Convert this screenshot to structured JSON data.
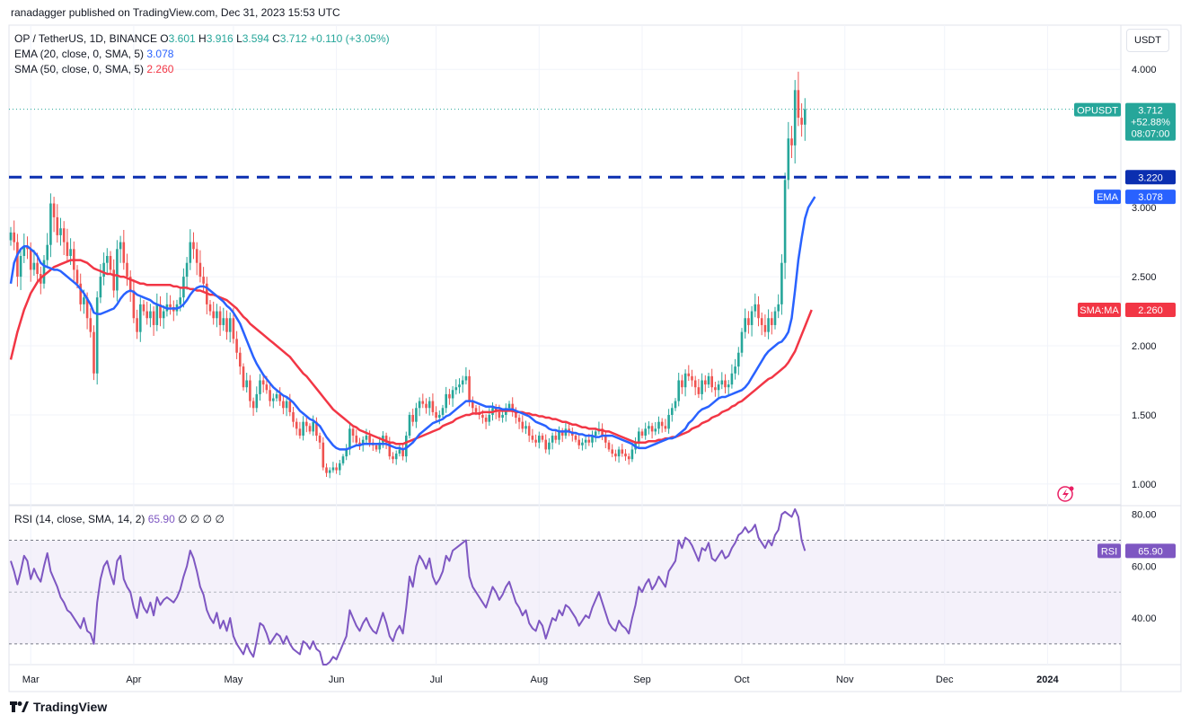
{
  "publisher": "ranadagger published on TradingView.com, Dec 31, 2023 15:53 UTC",
  "brand": "TradingView",
  "currency_button": "USDT",
  "legend": {
    "symbol": "OP / TetherUS, 1D, BINANCE",
    "o_label": "O",
    "o": "3.601",
    "h_label": "H",
    "h": "3.916",
    "l_label": "L",
    "l": "3.594",
    "c_label": "C",
    "c": "3.712",
    "change": "+0.110 (+3.05%)",
    "ema_label": "EMA (20, close, 0, SMA, 5)",
    "ema_value": "3.078",
    "sma_label": "SMA (50, close, 0, SMA, 5)",
    "sma_value": "2.260"
  },
  "rsi_legend": {
    "label": "RSI (14, close, SMA, 14, 2)",
    "value": "65.90",
    "extras": "∅ ∅ ∅ ∅"
  },
  "colors": {
    "up": "#26a69a",
    "down": "#ef5350",
    "ema": "#2962ff",
    "sma": "#f23645",
    "rsi": "#7e57c2",
    "level": "#0b2fb0",
    "band": "#ede7f6"
  },
  "chart_data": {
    "type": "candlestick",
    "title": "OP / TetherUS, 1D, BINANCE",
    "ylim": [
      0.85,
      4.32
    ],
    "price_ticks": [
      "4.000",
      "3.000",
      "2.500",
      "2.000",
      "1.500",
      "1.000"
    ],
    "price_tick_values": [
      4.0,
      3.0,
      2.5,
      2.0,
      1.5,
      1.0
    ],
    "x_labels": [
      "Mar",
      "Apr",
      "May",
      "Jun",
      "Jul",
      "Aug",
      "Sep",
      "Oct",
      "Nov",
      "Dec",
      "2024"
    ],
    "x_label_days": [
      6,
      37,
      67,
      98,
      128,
      159,
      190,
      220,
      251,
      281,
      312
    ],
    "horizontal_level": {
      "value": 3.22,
      "label": "3.220"
    },
    "last_price_label": {
      "symbol": "OPUSDT",
      "price": "3.712",
      "change": "+52.88%",
      "countdown": "08:07:00",
      "value": 3.712
    },
    "ema_label": {
      "name": "EMA",
      "value": "3.078",
      "num": 3.078
    },
    "sma_label": {
      "name": "SMA:MA",
      "value": "2.260",
      "num": 2.26
    },
    "closes": [
      2.82,
      2.75,
      2.5,
      2.65,
      2.72,
      2.7,
      2.55,
      2.6,
      2.52,
      2.45,
      2.62,
      2.73,
      3.03,
      2.93,
      2.8,
      2.85,
      2.75,
      2.65,
      2.7,
      2.55,
      2.45,
      2.3,
      2.35,
      2.2,
      2.1,
      1.8,
      2.35,
      2.5,
      2.6,
      2.65,
      2.55,
      2.4,
      2.7,
      2.75,
      2.6,
      2.5,
      2.4,
      2.2,
      2.1,
      2.3,
      2.25,
      2.2,
      2.25,
      2.15,
      2.3,
      2.2,
      2.25,
      2.3,
      2.28,
      2.25,
      2.3,
      2.35,
      2.5,
      2.6,
      2.75,
      2.7,
      2.6,
      2.5,
      2.45,
      2.3,
      2.25,
      2.2,
      2.25,
      2.15,
      2.2,
      2.1,
      2.2,
      2.05,
      1.95,
      1.85,
      1.7,
      1.75,
      1.6,
      1.55,
      1.65,
      1.75,
      1.72,
      1.68,
      1.6,
      1.62,
      1.65,
      1.6,
      1.55,
      1.6,
      1.52,
      1.45,
      1.4,
      1.35,
      1.45,
      1.42,
      1.38,
      1.45,
      1.35,
      1.3,
      1.12,
      1.08,
      1.1,
      1.12,
      1.1,
      1.15,
      1.2,
      1.25,
      1.4,
      1.35,
      1.3,
      1.28,
      1.32,
      1.35,
      1.3,
      1.28,
      1.25,
      1.3,
      1.35,
      1.3,
      1.2,
      1.18,
      1.22,
      1.25,
      1.2,
      1.35,
      1.5,
      1.45,
      1.55,
      1.6,
      1.58,
      1.55,
      1.6,
      1.52,
      1.48,
      1.5,
      1.55,
      1.65,
      1.62,
      1.68,
      1.7,
      1.72,
      1.75,
      1.78,
      1.6,
      1.55,
      1.52,
      1.5,
      1.48,
      1.45,
      1.5,
      1.55,
      1.52,
      1.48,
      1.5,
      1.55,
      1.58,
      1.52,
      1.48,
      1.45,
      1.4,
      1.42,
      1.35,
      1.32,
      1.3,
      1.35,
      1.32,
      1.25,
      1.3,
      1.35,
      1.32,
      1.38,
      1.35,
      1.4,
      1.38,
      1.35,
      1.32,
      1.28,
      1.3,
      1.32,
      1.3,
      1.35,
      1.38,
      1.4,
      1.35,
      1.3,
      1.25,
      1.22,
      1.2,
      1.25,
      1.22,
      1.2,
      1.18,
      1.25,
      1.3,
      1.38,
      1.35,
      1.4,
      1.42,
      1.38,
      1.4,
      1.45,
      1.42,
      1.4,
      1.5,
      1.55,
      1.6,
      1.75,
      1.7,
      1.8,
      1.78,
      1.75,
      1.7,
      1.65,
      1.75,
      1.72,
      1.78,
      1.7,
      1.68,
      1.72,
      1.75,
      1.7,
      1.72,
      1.8,
      1.85,
      1.95,
      2.1,
      2.2,
      2.15,
      2.25,
      2.3,
      2.2,
      2.15,
      2.1,
      2.2,
      2.15,
      2.25,
      2.3,
      2.6,
      3.2,
      3.5,
      3.45,
      3.85,
      3.65,
      3.6,
      3.712
    ],
    "ema20": [
      2.45,
      2.6,
      2.66,
      2.7,
      2.72,
      2.72,
      2.7,
      2.68,
      2.65,
      2.6,
      2.58,
      2.57,
      2.56,
      2.55,
      2.55,
      2.54,
      2.52,
      2.5,
      2.48,
      2.46,
      2.44,
      2.41,
      2.38,
      2.34,
      2.3,
      2.24,
      2.23,
      2.23,
      2.24,
      2.25,
      2.26,
      2.27,
      2.3,
      2.34,
      2.37,
      2.39,
      2.4,
      2.39,
      2.37,
      2.36,
      2.35,
      2.34,
      2.33,
      2.31,
      2.3,
      2.29,
      2.28,
      2.27,
      2.27,
      2.27,
      2.27,
      2.28,
      2.3,
      2.33,
      2.37,
      2.4,
      2.42,
      2.43,
      2.43,
      2.42,
      2.4,
      2.38,
      2.36,
      2.34,
      2.32,
      2.29,
      2.27,
      2.24,
      2.2,
      2.16,
      2.1,
      2.04,
      1.98,
      1.92,
      1.87,
      1.83,
      1.79,
      1.76,
      1.73,
      1.7,
      1.68,
      1.66,
      1.64,
      1.63,
      1.61,
      1.59,
      1.56,
      1.53,
      1.51,
      1.49,
      1.47,
      1.46,
      1.44,
      1.42,
      1.38,
      1.34,
      1.31,
      1.28,
      1.26,
      1.25,
      1.25,
      1.25,
      1.26,
      1.27,
      1.28,
      1.28,
      1.29,
      1.29,
      1.29,
      1.29,
      1.29,
      1.29,
      1.29,
      1.29,
      1.28,
      1.27,
      1.26,
      1.26,
      1.25,
      1.26,
      1.28,
      1.3,
      1.33,
      1.36,
      1.38,
      1.4,
      1.42,
      1.44,
      1.45,
      1.46,
      1.47,
      1.49,
      1.5,
      1.52,
      1.54,
      1.56,
      1.58,
      1.6,
      1.6,
      1.6,
      1.59,
      1.58,
      1.57,
      1.56,
      1.56,
      1.56,
      1.55,
      1.55,
      1.54,
      1.54,
      1.54,
      1.54,
      1.53,
      1.52,
      1.51,
      1.5,
      1.49,
      1.47,
      1.45,
      1.44,
      1.43,
      1.42,
      1.4,
      1.39,
      1.39,
      1.38,
      1.38,
      1.38,
      1.38,
      1.37,
      1.37,
      1.36,
      1.36,
      1.35,
      1.35,
      1.35,
      1.34,
      1.34,
      1.35,
      1.35,
      1.35,
      1.35,
      1.34,
      1.33,
      1.32,
      1.31,
      1.3,
      1.29,
      1.27,
      1.26,
      1.26,
      1.26,
      1.27,
      1.28,
      1.29,
      1.3,
      1.31,
      1.32,
      1.33,
      1.33,
      1.34,
      1.36,
      1.38,
      1.4,
      1.44,
      1.46,
      1.49,
      1.52,
      1.54,
      1.55,
      1.56,
      1.58,
      1.6,
      1.62,
      1.63,
      1.63,
      1.64,
      1.65,
      1.66,
      1.67,
      1.68,
      1.7,
      1.73,
      1.77,
      1.81,
      1.85,
      1.89,
      1.93,
      1.96,
      1.98,
      2.0,
      2.02,
      2.03,
      2.06,
      2.1,
      2.2,
      2.4,
      2.62,
      2.78,
      2.92,
      3.0,
      3.04,
      3.078
    ],
    "sma50": [
      1.9,
      2.0,
      2.1,
      2.18,
      2.26,
      2.32,
      2.38,
      2.42,
      2.46,
      2.49,
      2.51,
      2.53,
      2.55,
      2.57,
      2.58,
      2.59,
      2.6,
      2.61,
      2.62,
      2.62,
      2.62,
      2.62,
      2.61,
      2.6,
      2.58,
      2.56,
      2.55,
      2.54,
      2.53,
      2.52,
      2.52,
      2.51,
      2.51,
      2.5,
      2.5,
      2.49,
      2.48,
      2.47,
      2.46,
      2.45,
      2.45,
      2.44,
      2.44,
      2.44,
      2.44,
      2.44,
      2.44,
      2.44,
      2.44,
      2.43,
      2.43,
      2.42,
      2.42,
      2.42,
      2.41,
      2.41,
      2.4,
      2.4,
      2.39,
      2.38,
      2.37,
      2.37,
      2.36,
      2.35,
      2.34,
      2.33,
      2.31,
      2.29,
      2.27,
      2.24,
      2.21,
      2.19,
      2.16,
      2.14,
      2.12,
      2.1,
      2.08,
      2.06,
      2.04,
      2.02,
      2.0,
      1.98,
      1.96,
      1.94,
      1.92,
      1.89,
      1.86,
      1.83,
      1.8,
      1.78,
      1.75,
      1.72,
      1.69,
      1.66,
      1.63,
      1.6,
      1.57,
      1.54,
      1.52,
      1.5,
      1.48,
      1.46,
      1.44,
      1.42,
      1.41,
      1.39,
      1.38,
      1.37,
      1.36,
      1.35,
      1.34,
      1.33,
      1.32,
      1.31,
      1.3,
      1.3,
      1.29,
      1.29,
      1.29,
      1.3,
      1.31,
      1.32,
      1.33,
      1.34,
      1.35,
      1.36,
      1.37,
      1.38,
      1.39,
      1.4,
      1.42,
      1.43,
      1.44,
      1.45,
      1.47,
      1.48,
      1.49,
      1.5,
      1.5,
      1.51,
      1.51,
      1.51,
      1.52,
      1.52,
      1.52,
      1.52,
      1.53,
      1.53,
      1.53,
      1.53,
      1.53,
      1.53,
      1.52,
      1.52,
      1.52,
      1.51,
      1.51,
      1.5,
      1.5,
      1.49,
      1.49,
      1.48,
      1.48,
      1.47,
      1.47,
      1.46,
      1.45,
      1.45,
      1.44,
      1.43,
      1.43,
      1.42,
      1.41,
      1.41,
      1.4,
      1.4,
      1.4,
      1.39,
      1.39,
      1.38,
      1.38,
      1.37,
      1.36,
      1.35,
      1.34,
      1.33,
      1.32,
      1.31,
      1.3,
      1.3,
      1.3,
      1.3,
      1.31,
      1.31,
      1.31,
      1.32,
      1.32,
      1.33,
      1.33,
      1.34,
      1.34,
      1.35,
      1.36,
      1.37,
      1.38,
      1.4,
      1.41,
      1.42,
      1.44,
      1.45,
      1.46,
      1.48,
      1.49,
      1.5,
      1.52,
      1.53,
      1.54,
      1.56,
      1.57,
      1.59,
      1.6,
      1.62,
      1.64,
      1.66,
      1.68,
      1.7,
      1.72,
      1.74,
      1.76,
      1.77,
      1.79,
      1.81,
      1.83,
      1.85,
      1.88,
      1.92,
      1.96,
      2.02,
      2.08,
      2.14,
      2.2,
      2.26
    ],
    "rsi": [
      62,
      58,
      53,
      58,
      64,
      62,
      55,
      59,
      56,
      54,
      60,
      65,
      58,
      55,
      52,
      48,
      46,
      43,
      42,
      40,
      38,
      36,
      40,
      35,
      34,
      30,
      46,
      55,
      60,
      62,
      57,
      53,
      62,
      64,
      55,
      52,
      50,
      44,
      40,
      48,
      44,
      42,
      46,
      41,
      48,
      45,
      47,
      48,
      47,
      46,
      48,
      51,
      56,
      60,
      66,
      63,
      58,
      52,
      49,
      43,
      40,
      38,
      42,
      36,
      39,
      35,
      40,
      33,
      30,
      28,
      26,
      30,
      27,
      25,
      31,
      38,
      37,
      34,
      30,
      32,
      34,
      33,
      30,
      33,
      30,
      28,
      27,
      26,
      31,
      30,
      28,
      31,
      28,
      27,
      22,
      22,
      23,
      25,
      24,
      27,
      30,
      33,
      43,
      40,
      37,
      35,
      38,
      40,
      37,
      35,
      34,
      38,
      42,
      38,
      33,
      31,
      35,
      37,
      34,
      44,
      56,
      52,
      60,
      64,
      62,
      59,
      63,
      56,
      53,
      55,
      58,
      64,
      62,
      66,
      67,
      68,
      69,
      70,
      56,
      52,
      50,
      48,
      46,
      44,
      48,
      52,
      50,
      47,
      49,
      52,
      54,
      50,
      46,
      44,
      41,
      43,
      38,
      36,
      35,
      39,
      37,
      32,
      36,
      40,
      39,
      43,
      41,
      45,
      44,
      42,
      40,
      37,
      39,
      41,
      40,
      44,
      47,
      50,
      46,
      42,
      38,
      36,
      35,
      39,
      37,
      36,
      34,
      40,
      45,
      52,
      50,
      53,
      55,
      51,
      53,
      56,
      54,
      52,
      58,
      60,
      62,
      70,
      67,
      71,
      70,
      68,
      65,
      62,
      67,
      66,
      69,
      63,
      62,
      64,
      66,
      63,
      64,
      67,
      69,
      72,
      73,
      75,
      73,
      74,
      76,
      71,
      69,
      67,
      70,
      68,
      72,
      74,
      80,
      81,
      80,
      79,
      82,
      79,
      70,
      65.9
    ],
    "rsi_ylim": [
      22,
      83
    ],
    "rsi_ticks": [
      "80.00",
      "60.00",
      "40.00"
    ],
    "rsi_tick_values": [
      80,
      60,
      40
    ],
    "rsi_band": [
      30,
      70
    ],
    "rsi_label": {
      "name": "RSI",
      "value": "65.90",
      "num": 65.9
    }
  }
}
